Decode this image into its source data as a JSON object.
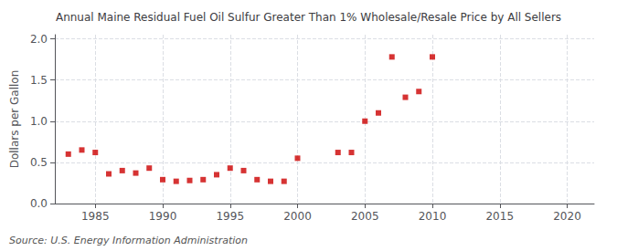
{
  "chart_data": {
    "type": "scatter",
    "title": "Annual Maine Residual Fuel Oil Sulfur Greater Than 1% Wholesale/Resale Price by All Sellers",
    "ylabel": "Dollars per Gallon",
    "source": "Source: U.S. Energy Information Administration",
    "x": [
      1983,
      1984,
      1985,
      1986,
      1987,
      1988,
      1989,
      1990,
      1991,
      1992,
      1993,
      1994,
      1995,
      1996,
      1997,
      1998,
      1999,
      2000,
      2003,
      2004,
      2005,
      2006,
      2007,
      2008,
      2009,
      2010
    ],
    "values": [
      0.6,
      0.65,
      0.62,
      0.36,
      0.4,
      0.37,
      0.43,
      0.29,
      0.27,
      0.28,
      0.29,
      0.35,
      0.43,
      0.4,
      0.29,
      0.27,
      0.27,
      0.55,
      0.62,
      0.62,
      1.0,
      1.1,
      1.78,
      1.29,
      1.36,
      1.78
    ],
    "color": "#cc0000",
    "marker": "square",
    "xlim": [
      1982,
      2022
    ],
    "xticks": [
      1985,
      1990,
      1995,
      2000,
      2005,
      2010,
      2015,
      2020
    ],
    "ylim": [
      0.0,
      2.05
    ],
    "yticks": [
      {
        "value": 0.0,
        "label": "0.0"
      },
      0.5,
      {
        "value": 1.0,
        "label": "1.0"
      },
      1.5,
      {
        "value": 2.0,
        "label": "2.0"
      }
    ],
    "grid": true
  }
}
